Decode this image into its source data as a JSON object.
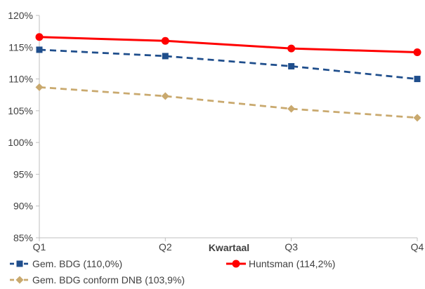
{
  "chart_data": {
    "type": "line",
    "title": "",
    "xlabel": "Kwartaal",
    "ylabel": "",
    "categories": [
      "Q1",
      "Q2",
      "Q3",
      "Q4"
    ],
    "ylim": [
      85,
      120
    ],
    "yticks": [
      85,
      90,
      95,
      100,
      105,
      110,
      115,
      120
    ],
    "ytick_labels": [
      "85%",
      "90%",
      "95%",
      "100%",
      "105%",
      "110%",
      "115%",
      "120%"
    ],
    "grid": false,
    "legend_position": "bottom",
    "series": [
      {
        "name": "Gem. BDG  (110,0%)",
        "values": [
          114.6,
          113.6,
          112.0,
          110.0
        ],
        "color": "#1f4e8c",
        "dash": "dashed",
        "marker": "square"
      },
      {
        "name": "Huntsman (114,2%)",
        "values": [
          116.6,
          116.0,
          114.8,
          114.2
        ],
        "color": "#ff0000",
        "dash": "solid",
        "marker": "circle"
      },
      {
        "name": "Gem. BDG conform DNB (103,9%)",
        "values": [
          108.7,
          107.3,
          105.3,
          103.9
        ],
        "color": "#c9a96e",
        "dash": "dashed",
        "marker": "diamond"
      }
    ]
  }
}
